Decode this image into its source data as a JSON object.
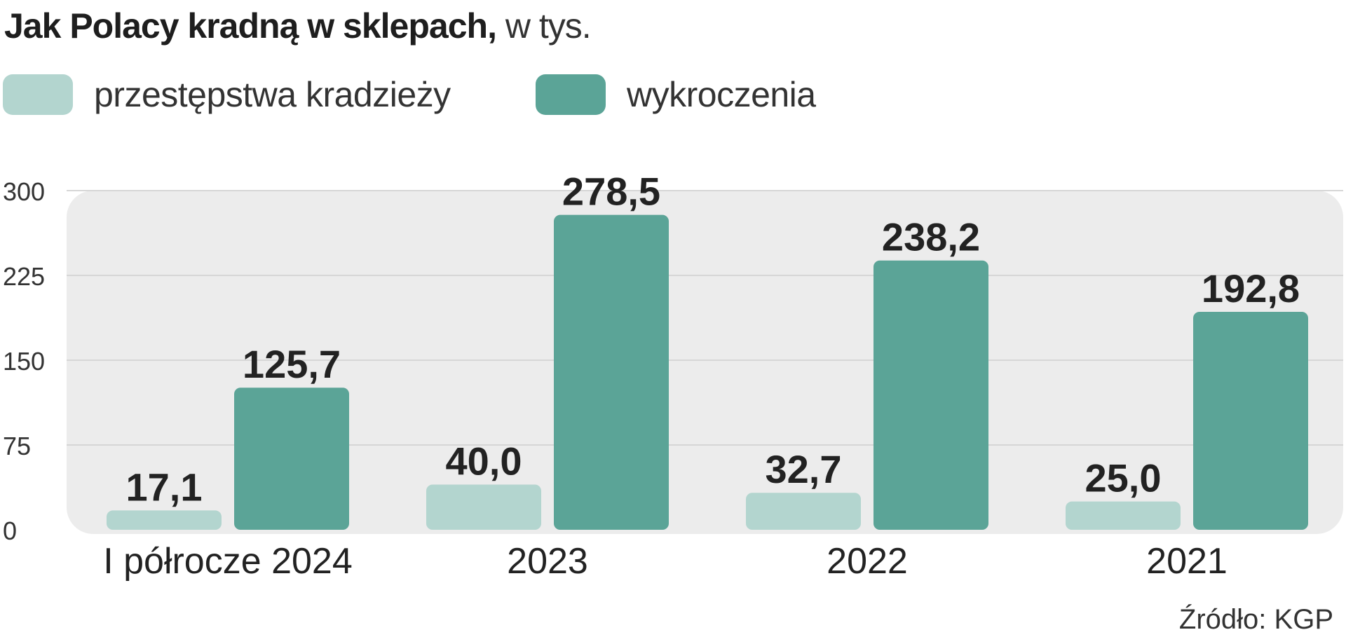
{
  "chart_data": {
    "type": "bar",
    "title": "Jak Polacy kradną w sklepach,",
    "subtitle": "w tys.",
    "categories": [
      "I półrocze 2024",
      "2023",
      "2022",
      "2021"
    ],
    "series": [
      {
        "name": "przestępstwa kradzieży",
        "color": "#b3d5cf",
        "values": [
          17.1,
          40.0,
          32.7,
          25.0
        ],
        "labels": [
          "17,1",
          "40,0",
          "32,7",
          "25,0"
        ]
      },
      {
        "name": "wykroczenia",
        "color": "#5ba497",
        "values": [
          125.7,
          278.5,
          238.2,
          192.8
        ],
        "labels": [
          "125,7",
          "278,5",
          "238,2",
          "192,8"
        ]
      }
    ],
    "ylim": [
      0,
      300
    ],
    "yticks": [
      "0",
      "75",
      "150",
      "225",
      "300"
    ],
    "grid": true,
    "legend_position": "top-left",
    "source": "Źródło: KGP"
  }
}
